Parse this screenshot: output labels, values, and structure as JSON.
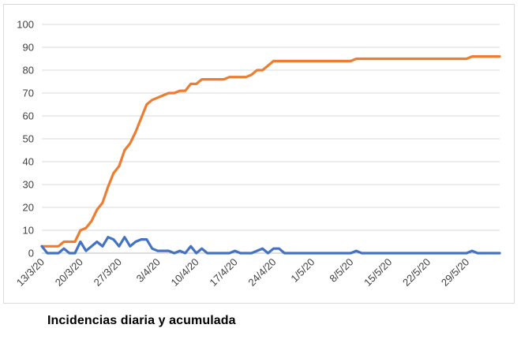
{
  "caption": "Incidencias diaria y acumulada",
  "chart_data": {
    "type": "line",
    "title": "",
    "xlabel": "",
    "ylabel": "",
    "ylim": [
      0,
      100
    ],
    "yticks": [
      0,
      10,
      20,
      30,
      40,
      50,
      60,
      70,
      80,
      90,
      100
    ],
    "grid": true,
    "legend": "none",
    "x_start": "13/3/20",
    "x_ticks": [
      "13/3/20",
      "20/3/20",
      "27/3/20",
      "3/4/20",
      "10/4/20",
      "17/4/20",
      "24/4/20",
      "1/5/20",
      "8/5/20",
      "15/5/20",
      "22/5/20",
      "29/5/20"
    ],
    "x_tick_index": [
      0,
      7,
      14,
      21,
      28,
      35,
      42,
      49,
      56,
      63,
      70,
      77
    ],
    "series": [
      {
        "color": "#ED7D31",
        "values": [
          3,
          3,
          3,
          3,
          5,
          5,
          5,
          10,
          11,
          14,
          19,
          22,
          29,
          35,
          38,
          45,
          48,
          53,
          59,
          65,
          67,
          68,
          69,
          70,
          70,
          71,
          71,
          74,
          74,
          76,
          76,
          76,
          76,
          76,
          77,
          77,
          77,
          77,
          78,
          80,
          80,
          82,
          84,
          84,
          84,
          84,
          84,
          84,
          84,
          84,
          84,
          84,
          84,
          84,
          84,
          84,
          84,
          85,
          85,
          85,
          85,
          85,
          85,
          85,
          85,
          85,
          85,
          85,
          85,
          85,
          85,
          85,
          85,
          85,
          85,
          85,
          85,
          85,
          86,
          86,
          86,
          86,
          86,
          86
        ]
      },
      {
        "color": "#4472C4",
        "values": [
          3,
          0,
          0,
          0,
          2,
          0,
          0,
          5,
          1,
          3,
          5,
          3,
          7,
          6,
          3,
          7,
          3,
          5,
          6,
          6,
          2,
          1,
          1,
          1,
          0,
          1,
          0,
          3,
          0,
          2,
          0,
          0,
          0,
          0,
          0,
          1,
          0,
          0,
          0,
          1,
          2,
          0,
          2,
          2,
          0,
          0,
          0,
          0,
          0,
          0,
          0,
          0,
          0,
          0,
          0,
          0,
          0,
          1,
          0,
          0,
          0,
          0,
          0,
          0,
          0,
          0,
          0,
          0,
          0,
          0,
          0,
          0,
          0,
          0,
          0,
          0,
          0,
          0,
          1,
          0,
          0,
          0,
          0,
          0
        ]
      }
    ]
  }
}
